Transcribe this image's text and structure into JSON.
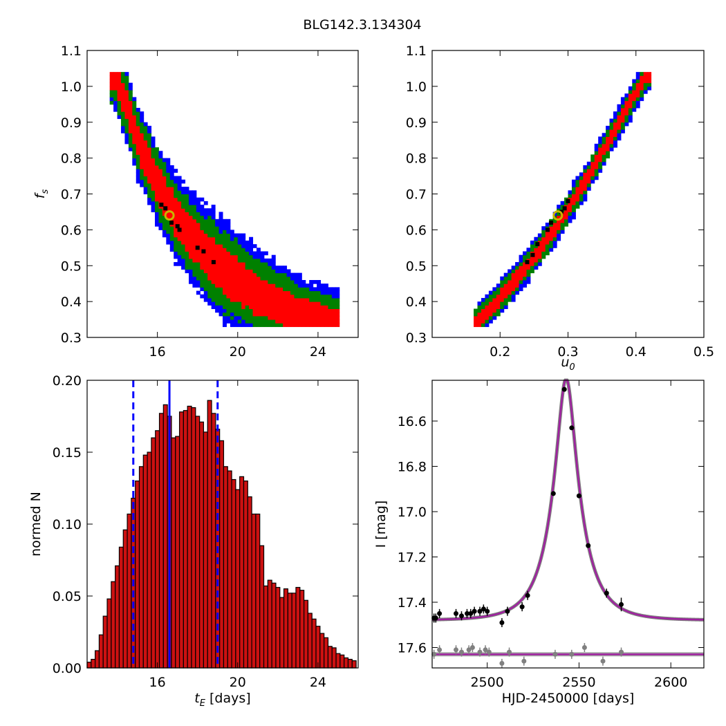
{
  "figure": {
    "title": "BLG142.3.134304"
  },
  "colors": {
    "sigma1": "#ff0000",
    "sigma2": "#008000",
    "sigma3": "#0000ff",
    "best": "#000000",
    "marker": "#c8b400",
    "hist": "#cc1111",
    "model": "#a020a0",
    "residual": "#808080"
  },
  "chart_data": [
    {
      "id": "tE_fs",
      "type": "heatmap",
      "title": "",
      "xlabel": "",
      "ylabel": "f_s",
      "xlim": [
        12.5,
        26
      ],
      "ylim": [
        0.3,
        1.1
      ],
      "xticks": [
        "16",
        "20",
        "24"
      ],
      "xtick_values": [
        16,
        20,
        24
      ],
      "yticks": [
        "0.3",
        "0.4",
        "0.5",
        "0.6",
        "0.7",
        "0.8",
        "0.9",
        "1.0",
        "1.1"
      ],
      "ytick_values": [
        0.3,
        0.4,
        0.5,
        0.6,
        0.7,
        0.8,
        0.9,
        1.0,
        1.1
      ],
      "ridge": [
        [
          13.9,
          1.03
        ],
        [
          14.5,
          0.94
        ],
        [
          15.0,
          0.85
        ],
        [
          15.5,
          0.79
        ],
        [
          16.0,
          0.73
        ],
        [
          16.5,
          0.68
        ],
        [
          17.0,
          0.63
        ],
        [
          18.0,
          0.56
        ],
        [
          19.0,
          0.5
        ],
        [
          20.0,
          0.46
        ],
        [
          21.0,
          0.42
        ],
        [
          22.0,
          0.39
        ],
        [
          23.0,
          0.37
        ],
        [
          24.0,
          0.35
        ],
        [
          24.8,
          0.34
        ]
      ],
      "best_fit": [
        16.6,
        0.64
      ],
      "best_points": [
        [
          16.4,
          0.66
        ],
        [
          16.7,
          0.62
        ],
        [
          17.0,
          0.61
        ],
        [
          17.1,
          0.6
        ],
        [
          18.0,
          0.55
        ],
        [
          18.3,
          0.54
        ],
        [
          18.8,
          0.51
        ],
        [
          16.2,
          0.67
        ]
      ],
      "grid": false
    },
    {
      "id": "u0_fs",
      "type": "heatmap",
      "title": "",
      "xlabel": "u_0",
      "ylabel": "",
      "xlim": [
        0.1,
        0.5
      ],
      "ylim": [
        0.3,
        1.1
      ],
      "xticks": [
        "0.2",
        "0.3",
        "0.4",
        "0.5"
      ],
      "xtick_values": [
        0.2,
        0.3,
        0.4,
        0.5
      ],
      "yticks": [
        "0.3",
        "0.4",
        "0.5",
        "0.6",
        "0.7",
        "0.8",
        "0.9",
        "1.0",
        "1.1"
      ],
      "ytick_values": [
        0.3,
        0.4,
        0.5,
        0.6,
        0.7,
        0.8,
        0.9,
        1.0,
        1.1
      ],
      "ridge": [
        [
          0.165,
          0.34
        ],
        [
          0.2,
          0.41
        ],
        [
          0.24,
          0.5
        ],
        [
          0.28,
          0.6
        ],
        [
          0.3,
          0.66
        ],
        [
          0.33,
          0.75
        ],
        [
          0.36,
          0.85
        ],
        [
          0.39,
          0.95
        ],
        [
          0.415,
          1.03
        ]
      ],
      "best_fit": [
        0.285,
        0.64
      ],
      "best_points": [
        [
          0.29,
          0.65
        ],
        [
          0.275,
          0.62
        ],
        [
          0.27,
          0.6
        ],
        [
          0.255,
          0.56
        ],
        [
          0.248,
          0.53
        ],
        [
          0.24,
          0.51
        ],
        [
          0.295,
          0.66
        ],
        [
          0.3,
          0.68
        ]
      ],
      "grid": false
    },
    {
      "id": "tE_hist",
      "type": "bar",
      "title": "",
      "xlabel": "t_E  [days]",
      "ylabel": "normed N",
      "xlim": [
        12.5,
        26
      ],
      "ylim": [
        0.0,
        0.2
      ],
      "xticks": [
        "16",
        "20",
        "24"
      ],
      "xtick_values": [
        16,
        20,
        24
      ],
      "yticks": [
        "0.00",
        "0.05",
        "0.10",
        "0.15",
        "0.20"
      ],
      "ytick_values": [
        0.0,
        0.05,
        0.1,
        0.15,
        0.2
      ],
      "bin_start": 12.5,
      "bin_width": 0.2,
      "values": [
        0.004,
        0.006,
        0.012,
        0.023,
        0.036,
        0.048,
        0.06,
        0.071,
        0.084,
        0.096,
        0.107,
        0.118,
        0.13,
        0.14,
        0.148,
        0.15,
        0.16,
        0.165,
        0.177,
        0.183,
        0.175,
        0.16,
        0.161,
        0.178,
        0.179,
        0.182,
        0.181,
        0.175,
        0.171,
        0.164,
        0.186,
        0.177,
        0.166,
        0.158,
        0.14,
        0.137,
        0.131,
        0.124,
        0.133,
        0.13,
        0.119,
        0.107,
        0.107,
        0.085,
        0.057,
        0.061,
        0.059,
        0.056,
        0.049,
        0.055,
        0.052,
        0.052,
        0.056,
        0.054,
        0.047,
        0.038,
        0.034,
        0.029,
        0.024,
        0.021,
        0.015,
        0.014,
        0.01,
        0.009,
        0.007,
        0.006,
        0.005,
        0.003,
        0.002,
        0.002,
        0.001,
        0.001
      ],
      "median": 16.6,
      "lower": 14.8,
      "upper": 19.0,
      "grid": false
    },
    {
      "id": "lightcurve",
      "type": "scatter",
      "title": "",
      "xlabel": "HJD-2450000 [days]",
      "ylabel": "I [mag]",
      "xlim": [
        2470,
        2618
      ],
      "ylim": [
        17.69,
        16.42
      ],
      "xticks": [
        "2500",
        "2550",
        "2600"
      ],
      "xtick_values": [
        2500,
        2550,
        2600
      ],
      "yticks": [
        "16.6",
        "16.8",
        "17.0",
        "17.2",
        "17.4",
        "17.6"
      ],
      "ytick_values": [
        16.6,
        16.8,
        17.0,
        17.2,
        17.4,
        17.6
      ],
      "model": {
        "t0": 2543.0,
        "tE": 16.6,
        "u0": 0.285,
        "fs": 0.64,
        "I_base": 17.48,
        "residual_level": 17.63
      },
      "points": [
        [
          2471,
          17.47
        ],
        [
          2472,
          17.47
        ],
        [
          2474,
          17.45
        ],
        [
          2483,
          17.45
        ],
        [
          2486,
          17.46
        ],
        [
          2489,
          17.45
        ],
        [
          2491,
          17.45
        ],
        [
          2493,
          17.44
        ],
        [
          2496,
          17.44
        ],
        [
          2498,
          17.43
        ],
        [
          2500,
          17.44
        ],
        [
          2508,
          17.49
        ],
        [
          2511,
          17.44
        ],
        [
          2519,
          17.42
        ],
        [
          2522,
          17.37
        ],
        [
          2536,
          16.92
        ],
        [
          2542,
          16.46
        ],
        [
          2546,
          16.63
        ],
        [
          2550,
          16.93
        ],
        [
          2555,
          17.15
        ],
        [
          2565,
          17.36
        ],
        [
          2573,
          17.41
        ]
      ],
      "errors": [
        0.02,
        0.02,
        0.02,
        0.02,
        0.02,
        0.02,
        0.02,
        0.02,
        0.02,
        0.02,
        0.02,
        0.02,
        0.02,
        0.02,
        0.02,
        0.01,
        0.01,
        0.01,
        0.01,
        0.01,
        0.02,
        0.03
      ],
      "residuals": [
        [
          2471,
          17.63
        ],
        [
          2474,
          17.61
        ],
        [
          2483,
          17.61
        ],
        [
          2486,
          17.62
        ],
        [
          2490,
          17.61
        ],
        [
          2492,
          17.6
        ],
        [
          2496,
          17.62
        ],
        [
          2499,
          17.61
        ],
        [
          2501,
          17.62
        ],
        [
          2508,
          17.67
        ],
        [
          2512,
          17.62
        ],
        [
          2520,
          17.66
        ],
        [
          2537,
          17.63
        ],
        [
          2546,
          17.63
        ],
        [
          2553,
          17.6
        ],
        [
          2563,
          17.66
        ],
        [
          2573,
          17.62
        ]
      ],
      "grid": false
    }
  ]
}
